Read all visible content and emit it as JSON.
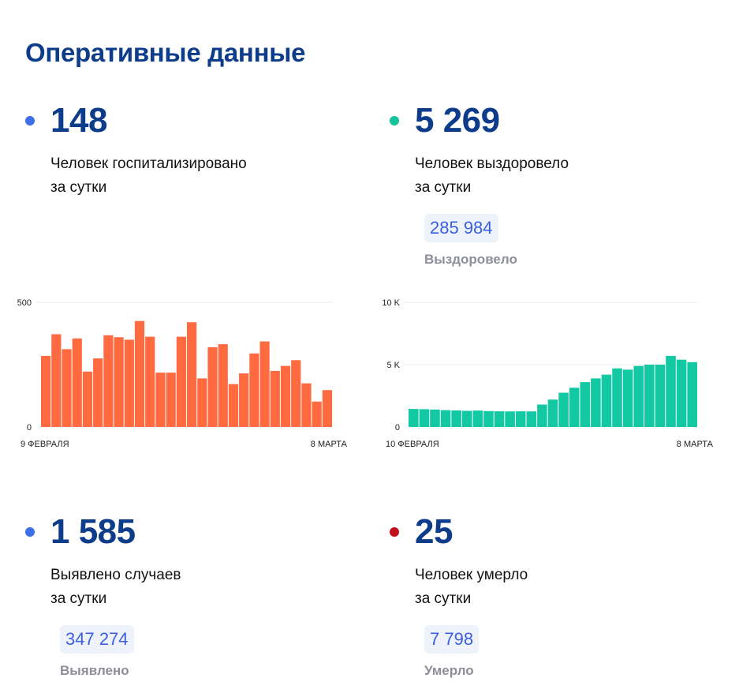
{
  "page": {
    "title": "Оперативные данные"
  },
  "stats": {
    "hospitalized": {
      "value": "148",
      "line1": "Человек госпитализировано",
      "line2": "за сутки",
      "dot_color": "#3d6fe8"
    },
    "recovered": {
      "value": "5 269",
      "line1": "Человек выздоровело",
      "line2": "за сутки",
      "total": "285 984",
      "total_label": "Выздоровело",
      "dot_color": "#12c29b"
    },
    "cases": {
      "value": "1 585",
      "line1": "Выявлено случаев",
      "line2": "за сутки",
      "total": "347 274",
      "total_label": "Выявлено",
      "dot_color": "#3d6fe8"
    },
    "deaths": {
      "value": "25",
      "line1": "Человек умерло",
      "line2": "за сутки",
      "total": "7 798",
      "total_label": "Умерло",
      "dot_color": "#c4101c"
    }
  },
  "chart_data": [
    {
      "type": "bar",
      "color": "#ff6a40",
      "x_start_label": "9 ФЕВРАЛЯ",
      "x_end_label": "8 МАРТА",
      "y_ticks": [
        "500",
        "0"
      ],
      "ylim": [
        0,
        500
      ],
      "grid": true,
      "values": [
        285,
        372,
        312,
        355,
        222,
        275,
        368,
        360,
        350,
        425,
        362,
        218,
        218,
        362,
        420,
        195,
        320,
        332,
        172,
        215,
        295,
        343,
        225,
        245,
        268,
        175,
        102,
        148
      ]
    },
    {
      "type": "bar",
      "color": "#12c9a3",
      "x_start_label": "10 ФЕВРАЛЯ",
      "x_end_label": "8 МАРТА",
      "y_ticks": [
        "10 K",
        "5 K",
        "0"
      ],
      "ylim": [
        0,
        10000
      ],
      "grid": true,
      "values": [
        1450,
        1430,
        1400,
        1350,
        1330,
        1300,
        1320,
        1280,
        1260,
        1250,
        1260,
        1250,
        1800,
        2200,
        2750,
        3150,
        3600,
        3900,
        4200,
        4700,
        4600,
        4900,
        5000,
        5000,
        5700,
        5400,
        5200
      ]
    }
  ]
}
